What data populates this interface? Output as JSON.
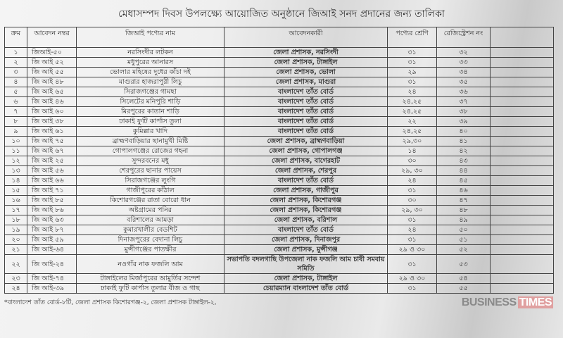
{
  "title": "মেধাসম্পদ দিবস উপলক্ষ্যে আয়োজিত অনুষ্ঠানে জিআই সনদ প্রদানের জন্য তালিকা",
  "table": {
    "headers": [
      "ক্রম",
      "আবেদন নম্বর",
      "জিআই পণ্যের নাম",
      "আবেদনকারী",
      "পণ্যের শ্রেণি",
      "রেজিস্ট্রেশন নং",
      ""
    ],
    "rows": [
      [
        "১",
        "জিআই-৫০",
        "নরসিংদীর লটকন",
        "জেলা প্রশাসক, নরসিংদী",
        "৩১",
        "৩২"
      ],
      [
        "২",
        "জি আই ৫২",
        "মধুপুরের আনারস",
        "জেলা প্রশাসক, টাঙ্গাইল",
        "৩১",
        "৩৩"
      ],
      [
        "৩",
        "জি আই ৫৫",
        "ভোলার মহিষের দুধের কাঁচা দই",
        "জেলা প্রশাসক, ভোলা",
        "২৯",
        "৩৪"
      ],
      [
        "৪",
        "জি আই ৪৮",
        "মাগুরার হাজরাপুরী লিচু",
        "জেলা প্রশাসক, মাগুরা",
        "৩১",
        "৩৫"
      ],
      [
        "৫",
        "জি আই ৬৫",
        "সিরাজগঞ্জের গামছা",
        "বাংলাদেশ তাঁত বোর্ড",
        "২৪",
        "৩৬"
      ],
      [
        "৬",
        "জি আই ৪৬",
        "সিলেটের মনিপুরি শাড়ি",
        "বাংলাদেশ তাঁত বোর্ড",
        "২৪,২৫",
        "৩৭"
      ],
      [
        "৭",
        "জি আই ৬০",
        "মিরপুরের কাতান শাড়ি",
        "বাংলাদেশ তাঁত বোর্ড",
        "২৪,২৫",
        "৩৮"
      ],
      [
        "৮",
        "জি আই ৩৮",
        "ঢাকাই ফুটি কার্পাস তুলা",
        "বাংলাদেশ তাঁত বোর্ড",
        "২২",
        "৩৯"
      ],
      [
        "৯",
        "জি আই ৬১",
        "কুমিল্লার খাদি",
        "বাংলাদেশ তাঁত বোর্ড",
        "২৪,২৫",
        "৪০"
      ],
      [
        "১০",
        "জি আই ৭৫",
        "ব্রাহ্মণবাড়িয়ার ছানামুখী মিষ্টি",
        "জেলা প্রশাসক, ব্রাহ্মণবাড়িয়া",
        "২৯,৩০",
        "৪১"
      ],
      [
        "১১",
        "জি আই ৬৭",
        "গোপালগঞ্জের রোজের গহনা",
        "জেলা প্রশাসক, গোপালগঞ্জ",
        "১৪",
        "৪২"
      ],
      [
        "১২",
        "জি আই ২৫",
        "সুন্দরবনের মধু",
        "জেলা প্রশাসক, বাগেরহাট",
        "৩০",
        "৪৩"
      ],
      [
        "১৩",
        "জি আই ৫৬",
        "শেরপুরের ছানার পায়েস",
        "জেলা প্রশাসক, শেরপুর",
        "২৯, ৩০",
        "৪৪"
      ],
      [
        "১৪",
        "জি আই ৬৬",
        "সিরাজগঞ্জের লুংগি",
        "বাংলাদেশ তাঁত বোর্ড",
        "২৪",
        "৪৫"
      ],
      [
        "১৫",
        "জি আই ৭১",
        "গাজীপুরের কাঁঠাল",
        "জেলা প্রশাসক, গাজীপুর",
        "৩১",
        "৪৬"
      ],
      [
        "১৬",
        "জি আই ৮৫",
        "কিশোরগঞ্জের রাতা বোরো ধান",
        "জেলা প্রশাসক, কিশোরগঞ্জ",
        "৩০",
        "৪৭"
      ],
      [
        "১৭",
        "জি আই ৮৬",
        "অষ্টগ্রামের পনির",
        "জেলা প্রশাসক, কিশোরগঞ্জ",
        "২৯, ৩০",
        "৪৮"
      ],
      [
        "১৮",
        "জি আই ৬৩",
        "বরিশালের আমড়া",
        "জেলা প্রশাসক, বরিশাল",
        "৩১",
        "৪৯"
      ],
      [
        "১৯",
        "জি আই ৮৭",
        "কুমারখালীর বেডশিট",
        "বাংলাদেশ তাঁত বোর্ড",
        "২৪",
        "৫০"
      ],
      [
        "২০",
        "জি আই ৫৯",
        "দিনাজপুরের বেদানা লিচু",
        "জেলা প্রশাসক, দিনাজপুর",
        "৩১",
        "৫১"
      ],
      [
        "২১",
        "জি আই-৬৪",
        "মুন্সীগঞ্জের পাতক্ষীর",
        "জেলা প্রশাসক, মুন্সীগঞ্জ",
        "২৯ ও ৩০",
        "৫২"
      ],
      [
        "২২",
        "জি আই-২৪",
        "নওগাঁর নাক ফজলি আম",
        "সভাপতি বদলগাছি উপজেলা নাক ফজলি আম চাষী সমবায় সমিতি",
        "৩১",
        "৫৩"
      ],
      [
        "২৩",
        "জি আই-৭৪",
        "টাঙ্গাইলের মির্জাপুরের আমুর্তির সন্দেশ",
        "জেলা প্রশাসক, টাঙ্গাইল",
        "২৯ ও ৩০",
        "৫৪"
      ],
      [
        "২৪",
        "জি আই-৩৯",
        "ঢাকাই ফুটি কার্পাস তুলার বীজ ও গাছ",
        "চেয়ারম্যান বাংলাদেশ তাঁত বোর্ড",
        "৩১",
        "৫৫"
      ]
    ]
  },
  "footnote": "*বাংলাদেশ তাঁত বোর্ড-৮টি, জেলা প্রশাসক কিশোরগঞ্জ-২, জেলা প্রশাসক টাঙ্গাইল-২,",
  "watermark": {
    "part1": "BUSINESS",
    "part2": "TIMES"
  }
}
